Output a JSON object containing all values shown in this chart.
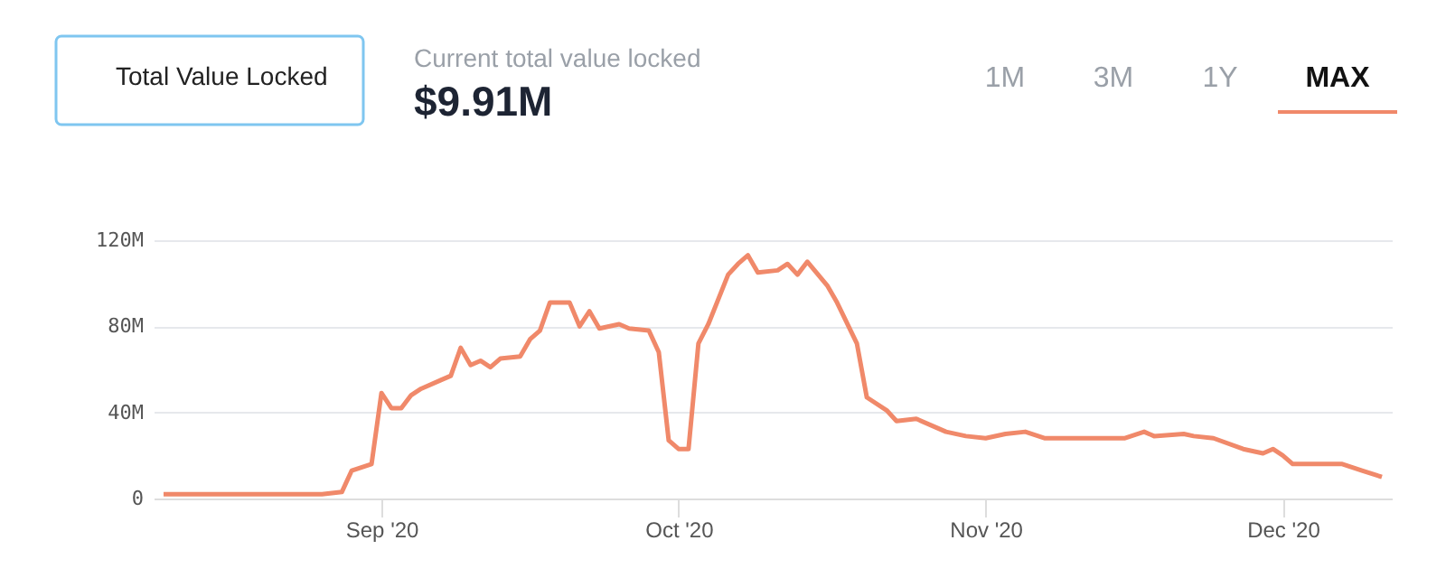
{
  "chart_data": {
    "type": "line",
    "annotations": [
      "Total Value Locked",
      "Current total value locked",
      "$9.91M",
      "1M",
      "3M",
      "1Y",
      "MAX"
    ],
    "x": [
      "2020-08-10",
      "2020-08-14",
      "2020-08-19",
      "2020-08-26",
      "2020-08-28",
      "2020-08-29",
      "2020-08-31",
      "2020-09-01",
      "2020-09-02",
      "2020-09-03",
      "2020-09-04",
      "2020-09-05",
      "2020-09-07",
      "2020-09-08",
      "2020-09-09",
      "2020-09-10",
      "2020-09-11",
      "2020-09-12",
      "2020-09-13",
      "2020-09-15",
      "2020-09-16",
      "2020-09-17",
      "2020-09-18",
      "2020-09-20",
      "2020-09-21",
      "2020-09-22",
      "2020-09-23",
      "2020-09-25",
      "2020-09-26",
      "2020-09-28",
      "2020-09-29",
      "2020-09-30",
      "2020-10-01",
      "2020-10-02",
      "2020-10-03",
      "2020-10-04",
      "2020-10-06",
      "2020-10-07",
      "2020-10-08",
      "2020-10-09",
      "2020-10-11",
      "2020-10-12",
      "2020-10-13",
      "2020-10-14",
      "2020-10-16",
      "2020-10-17",
      "2020-10-19",
      "2020-10-20",
      "2020-10-22",
      "2020-10-23",
      "2020-10-25",
      "2020-10-27",
      "2020-10-28",
      "2020-10-30",
      "2020-11-01",
      "2020-11-03",
      "2020-11-05",
      "2020-11-07",
      "2020-11-11",
      "2020-11-15",
      "2020-11-17",
      "2020-11-18",
      "2020-11-21",
      "2020-11-22",
      "2020-11-24",
      "2020-11-27",
      "2020-11-29",
      "2020-11-30",
      "2020-12-01",
      "2020-12-02",
      "2020-12-07",
      "2020-12-09",
      "2020-12-11"
    ],
    "series": [
      {
        "color": "#f0896a",
        "values": [
          2,
          2,
          2,
          2,
          3,
          13,
          16,
          49,
          42,
          42,
          48,
          51,
          55,
          57,
          70,
          62,
          64,
          61,
          65,
          66,
          74,
          78,
          91,
          91,
          80,
          87,
          79,
          81,
          79,
          78,
          68,
          27,
          23,
          23,
          72,
          81,
          104,
          109,
          113,
          105,
          106,
          109,
          104,
          110,
          99,
          91,
          72,
          47,
          41,
          36,
          37,
          33,
          31,
          29,
          28,
          30,
          31,
          28,
          28,
          28,
          31,
          29,
          30,
          29,
          28,
          23,
          21,
          23,
          20,
          16,
          16,
          13,
          10
        ]
      }
    ],
    "xlim": [
      "2020-08-09",
      "2020-12-12"
    ],
    "xticks": [
      {
        "value": "2020-09-01",
        "label": "Sep '20"
      },
      {
        "value": "2020-10-01",
        "label": "Oct '20"
      },
      {
        "value": "2020-11-01",
        "label": "Nov '20"
      },
      {
        "value": "2020-12-01",
        "label": "Dec '20"
      }
    ],
    "ylim": [
      0,
      120
    ],
    "yticks": [
      {
        "value": 0,
        "label": "0"
      },
      {
        "value": 40,
        "label": "40M"
      },
      {
        "value": 80,
        "label": "80M"
      },
      {
        "value": 120,
        "label": "120M"
      }
    ],
    "grid": "y",
    "marker": "none",
    "line_style": "solid"
  }
}
